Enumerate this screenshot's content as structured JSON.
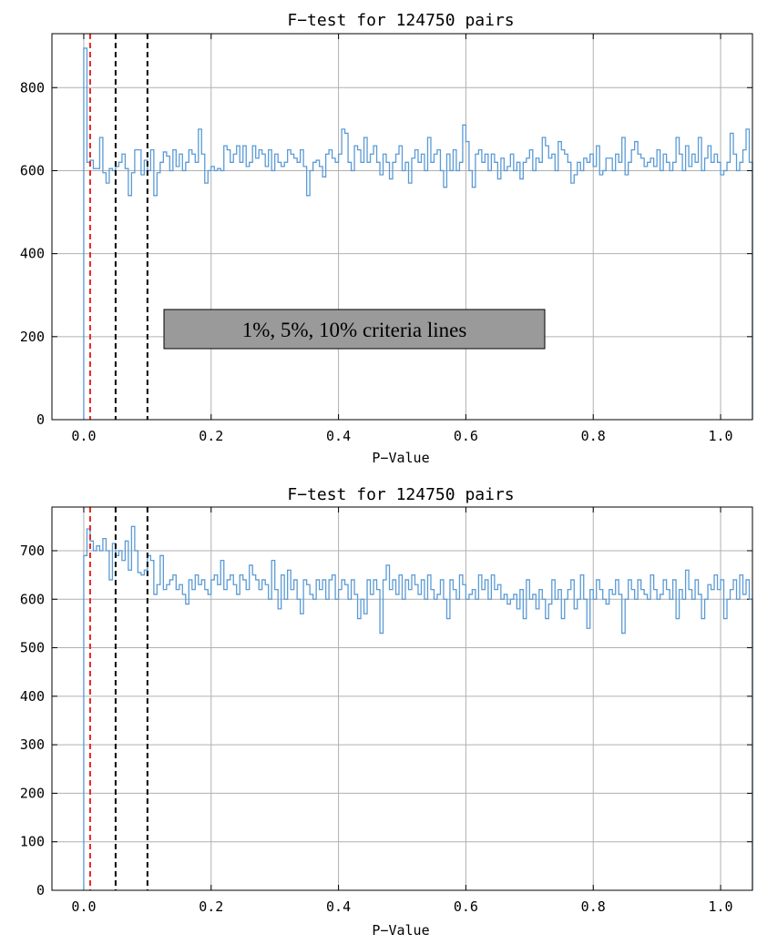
{
  "chart_data": [
    {
      "type": "histogram",
      "title": "F−test for 124750 pairs",
      "xlabel": "P−Value",
      "ylabel": "",
      "xlim": [
        -0.05,
        1.05
      ],
      "ylim": [
        0,
        930
      ],
      "xticks": [
        "0.0",
        "0.2",
        "0.4",
        "0.6",
        "0.8",
        "1.0"
      ],
      "yticks": [
        0,
        200,
        400,
        600,
        800
      ],
      "grid": true,
      "bin_width": 0.005,
      "bin_start": 0.0,
      "series": [
        {
          "color": "#5b9bd5",
          "values": [
            895,
            620,
            625,
            605,
            605,
            680,
            595,
            570,
            605,
            600,
            610,
            620,
            640,
            605,
            540,
            595,
            650,
            650,
            590,
            625,
            600,
            650,
            540,
            595,
            620,
            645,
            635,
            600,
            650,
            610,
            640,
            600,
            620,
            650,
            640,
            620,
            700,
            640,
            570,
            600,
            610,
            600,
            605,
            600,
            660,
            650,
            620,
            640,
            660,
            620,
            660,
            610,
            620,
            660,
            630,
            650,
            640,
            610,
            650,
            600,
            640,
            620,
            610,
            620,
            650,
            640,
            630,
            620,
            650,
            610,
            540,
            600,
            620,
            625,
            610,
            585,
            640,
            650,
            630,
            620,
            640,
            700,
            690,
            620,
            600,
            660,
            650,
            620,
            680,
            620,
            640,
            660,
            620,
            590,
            640,
            620,
            580,
            620,
            640,
            660,
            600,
            620,
            570,
            630,
            650,
            620,
            640,
            600,
            680,
            620,
            640,
            650,
            600,
            560,
            640,
            600,
            650,
            600,
            620,
            710,
            670,
            600,
            560,
            640,
            650,
            620,
            640,
            600,
            640,
            620,
            580,
            630,
            600,
            610,
            640,
            600,
            620,
            580,
            620,
            630,
            650,
            600,
            630,
            620,
            680,
            660,
            630,
            640,
            600,
            670,
            650,
            640,
            620,
            570,
            590,
            620,
            600,
            630,
            620,
            640,
            610,
            660,
            590,
            600,
            630,
            630,
            600,
            640,
            620,
            680,
            590,
            620,
            650,
            670,
            640,
            630,
            610,
            620,
            630,
            610,
            650,
            600,
            640,
            620,
            600,
            620,
            680,
            640,
            600,
            660,
            610,
            640,
            620,
            680,
            600,
            630,
            660,
            620,
            640,
            620,
            590,
            600,
            620,
            690,
            640,
            600,
            620,
            650,
            700,
            620
          ]
        }
      ],
      "vlines": [
        {
          "x": 0.01,
          "color": "#e8271f",
          "style": "dashed"
        },
        {
          "x": 0.05,
          "color": "#000000",
          "style": "dashed"
        },
        {
          "x": 0.1,
          "color": "#000000",
          "style": "dashed"
        }
      ],
      "annotation": "1%, 5%, 10% criteria lines"
    },
    {
      "type": "histogram",
      "title": "F−test for 124750 pairs",
      "xlabel": "P−Value",
      "ylabel": "",
      "xlim": [
        -0.05,
        1.05
      ],
      "ylim": [
        0,
        790
      ],
      "xticks": [
        "0.0",
        "0.2",
        "0.4",
        "0.6",
        "0.8",
        "1.0"
      ],
      "yticks": [
        0,
        100,
        200,
        300,
        400,
        500,
        600,
        700
      ],
      "grid": true,
      "bin_width": 0.005,
      "bin_start": 0.0,
      "series": [
        {
          "color": "#5b9bd5",
          "values": [
            690,
            745,
            720,
            700,
            710,
            700,
            725,
            700,
            640,
            715,
            690,
            700,
            680,
            720,
            660,
            750,
            700,
            655,
            650,
            660,
            690,
            680,
            610,
            630,
            690,
            620,
            630,
            640,
            650,
            620,
            630,
            610,
            590,
            640,
            620,
            650,
            630,
            640,
            620,
            610,
            640,
            650,
            630,
            680,
            620,
            640,
            650,
            630,
            610,
            650,
            640,
            620,
            670,
            650,
            640,
            620,
            640,
            630,
            600,
            680,
            620,
            580,
            650,
            600,
            660,
            620,
            640,
            600,
            570,
            640,
            630,
            610,
            600,
            640,
            620,
            640,
            600,
            640,
            650,
            600,
            620,
            640,
            630,
            600,
            640,
            610,
            560,
            600,
            570,
            640,
            610,
            640,
            620,
            530,
            640,
            670,
            620,
            640,
            610,
            650,
            600,
            640,
            620,
            650,
            630,
            610,
            640,
            600,
            650,
            620,
            600,
            610,
            640,
            600,
            560,
            640,
            620,
            600,
            650,
            630,
            600,
            610,
            620,
            600,
            650,
            620,
            640,
            600,
            650,
            620,
            630,
            600,
            610,
            590,
            600,
            610,
            580,
            620,
            560,
            640,
            600,
            610,
            580,
            620,
            600,
            560,
            590,
            640,
            600,
            620,
            560,
            600,
            620,
            640,
            580,
            600,
            650,
            600,
            540,
            620,
            600,
            640,
            620,
            600,
            590,
            620,
            610,
            640,
            610,
            530,
            600,
            640,
            620,
            600,
            640,
            620,
            610,
            600,
            650,
            620,
            600,
            610,
            640,
            620,
            600,
            640,
            560,
            620,
            600,
            660,
            620,
            600,
            640,
            610,
            560,
            600,
            630,
            620,
            650,
            620,
            640,
            560,
            600,
            620,
            640,
            600,
            650,
            610,
            640,
            600
          ]
        }
      ],
      "vlines": [
        {
          "x": 0.01,
          "color": "#e8271f",
          "style": "dashed"
        },
        {
          "x": 0.05,
          "color": "#000000",
          "style": "dashed"
        },
        {
          "x": 0.1,
          "color": "#000000",
          "style": "dashed"
        }
      ]
    }
  ]
}
